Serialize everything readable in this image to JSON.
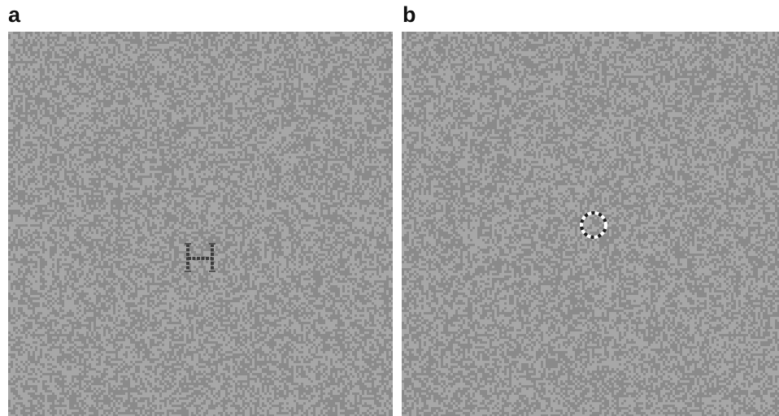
{
  "figure": {
    "panels": [
      {
        "label": "a",
        "stimulus": "letter-H",
        "target_color": "#3c3c3c"
      },
      {
        "label": "b",
        "stimulus": "ring",
        "target_colors": [
          "#ffffff",
          "#1e1e1e"
        ]
      }
    ],
    "noise_colors": [
      "#8a8a8a",
      "#a7a7a7"
    ]
  }
}
